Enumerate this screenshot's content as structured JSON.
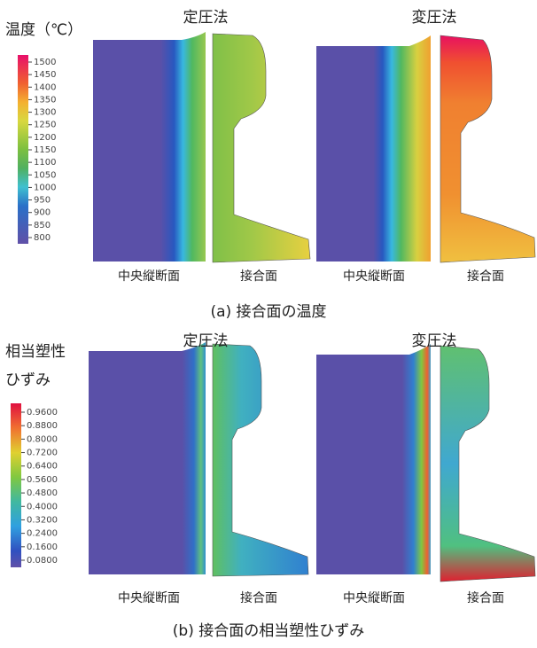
{
  "panel_a": {
    "colorbar_title": "温度（℃）",
    "colorbar_ticks": [
      "1500",
      "1450",
      "1400",
      "1350",
      "1300",
      "1250",
      "1200",
      "1150",
      "1100",
      "1050",
      "1000",
      "950",
      "900",
      "850",
      "800"
    ],
    "method_labels": [
      "定圧法",
      "変圧法"
    ],
    "section_labels": [
      "中央縦断面",
      "接合面",
      "中央縦断面",
      "接合面"
    ],
    "caption": "(a) 接合面の温度"
  },
  "panel_b": {
    "colorbar_title": [
      "相当塑性",
      "ひずみ"
    ],
    "colorbar_ticks": [
      "0.9600",
      "0.8800",
      "0.8000",
      "0.7200",
      "0.6400",
      "0.5600",
      "0.4800",
      "0.4000",
      "0.3200",
      "0.2400",
      "0.1600",
      "0.0800"
    ],
    "method_labels": [
      "定圧法",
      "変圧法"
    ],
    "section_labels": [
      "中央縦断面",
      "接合面",
      "中央縦断面",
      "接合面"
    ],
    "caption": "(b) 接合面の相当塑性ひずみ"
  }
}
